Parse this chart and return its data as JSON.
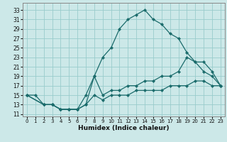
{
  "xlabel": "Humidex (Indice chaleur)",
  "bg_color": "#cce8e8",
  "grid_color": "#99cccc",
  "line_color": "#1a6b6b",
  "xlim": [
    -0.5,
    23.5
  ],
  "ylim": [
    10.5,
    34.5
  ],
  "xticks": [
    0,
    1,
    2,
    3,
    4,
    5,
    6,
    7,
    8,
    9,
    10,
    11,
    12,
    13,
    14,
    15,
    16,
    17,
    18,
    19,
    20,
    21,
    22,
    23
  ],
  "yticks": [
    11,
    13,
    15,
    17,
    19,
    21,
    23,
    25,
    27,
    29,
    31,
    33
  ],
  "line1_x": [
    0,
    1,
    2,
    3,
    4,
    5,
    6,
    7,
    8,
    9,
    10,
    11,
    12,
    13,
    14,
    15,
    16,
    17,
    18,
    19,
    20,
    21,
    22,
    23
  ],
  "line1_y": [
    15,
    15,
    13,
    13,
    12,
    12,
    12,
    13,
    19,
    23,
    25,
    29,
    31,
    32,
    33,
    31,
    30,
    28,
    27,
    24,
    22,
    20,
    19,
    17
  ],
  "line2_x": [
    0,
    2,
    3,
    4,
    5,
    6,
    7,
    8,
    9,
    10,
    11,
    12,
    13,
    14,
    15,
    16,
    17,
    18,
    19,
    20,
    21,
    22,
    23
  ],
  "line2_y": [
    15,
    13,
    13,
    12,
    12,
    12,
    15,
    19,
    15,
    16,
    16,
    17,
    17,
    18,
    18,
    19,
    19,
    20,
    23,
    22,
    22,
    20,
    17
  ],
  "line3_x": [
    0,
    2,
    3,
    4,
    5,
    6,
    7,
    8,
    9,
    10,
    11,
    12,
    13,
    14,
    15,
    16,
    17,
    18,
    19,
    20,
    21,
    22,
    23
  ],
  "line3_y": [
    15,
    13,
    13,
    12,
    12,
    12,
    13,
    15,
    14,
    15,
    15,
    15,
    16,
    16,
    16,
    16,
    17,
    17,
    17,
    18,
    18,
    17,
    17
  ]
}
